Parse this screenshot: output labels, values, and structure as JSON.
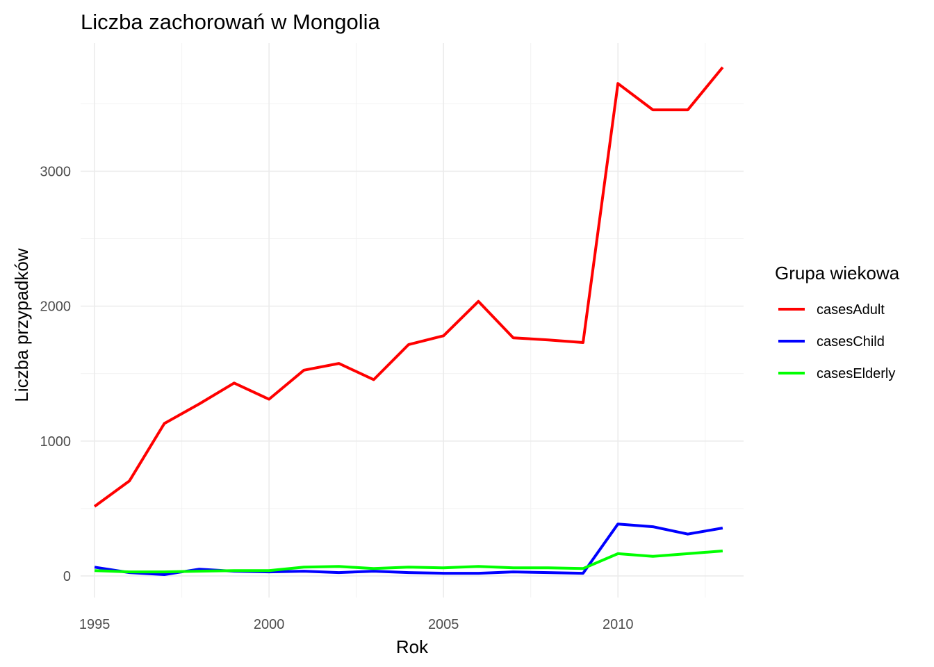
{
  "chart_data": {
    "type": "line",
    "title": "Liczba zachorowań w Mongolia",
    "xlabel": "Rok",
    "ylabel": "Liczba przypadków",
    "x": [
      1995,
      1996,
      1997,
      1998,
      1999,
      2000,
      2001,
      2002,
      2003,
      2004,
      2005,
      2006,
      2007,
      2008,
      2009,
      2010,
      2011,
      2012,
      2013
    ],
    "series": [
      {
        "name": "casesAdult",
        "color": "#ff0000",
        "values": [
          515,
          705,
          1130,
          1275,
          1430,
          1310,
          1525,
          1575,
          1455,
          1715,
          1780,
          2035,
          1765,
          1750,
          1730,
          3650,
          3455,
          3455,
          3770
        ]
      },
      {
        "name": "casesChild",
        "color": "#0000ff",
        "values": [
          65,
          25,
          10,
          50,
          35,
          30,
          35,
          25,
          35,
          25,
          20,
          20,
          30,
          25,
          20,
          385,
          365,
          310,
          355
        ]
      },
      {
        "name": "casesElderly",
        "color": "#00ff00",
        "values": [
          40,
          30,
          30,
          35,
          40,
          40,
          65,
          70,
          55,
          65,
          60,
          70,
          60,
          60,
          55,
          165,
          145,
          165,
          185
        ]
      }
    ],
    "xlim": [
      1994.6,
      2013.6
    ],
    "ylim": [
      -160,
      3950
    ],
    "xticks": [
      1995,
      2000,
      2005,
      2010
    ],
    "yticks": [
      0,
      1000,
      2000,
      3000
    ],
    "legend_title": "Grupa wiekowa",
    "legend_position": "right",
    "grid": true
  }
}
